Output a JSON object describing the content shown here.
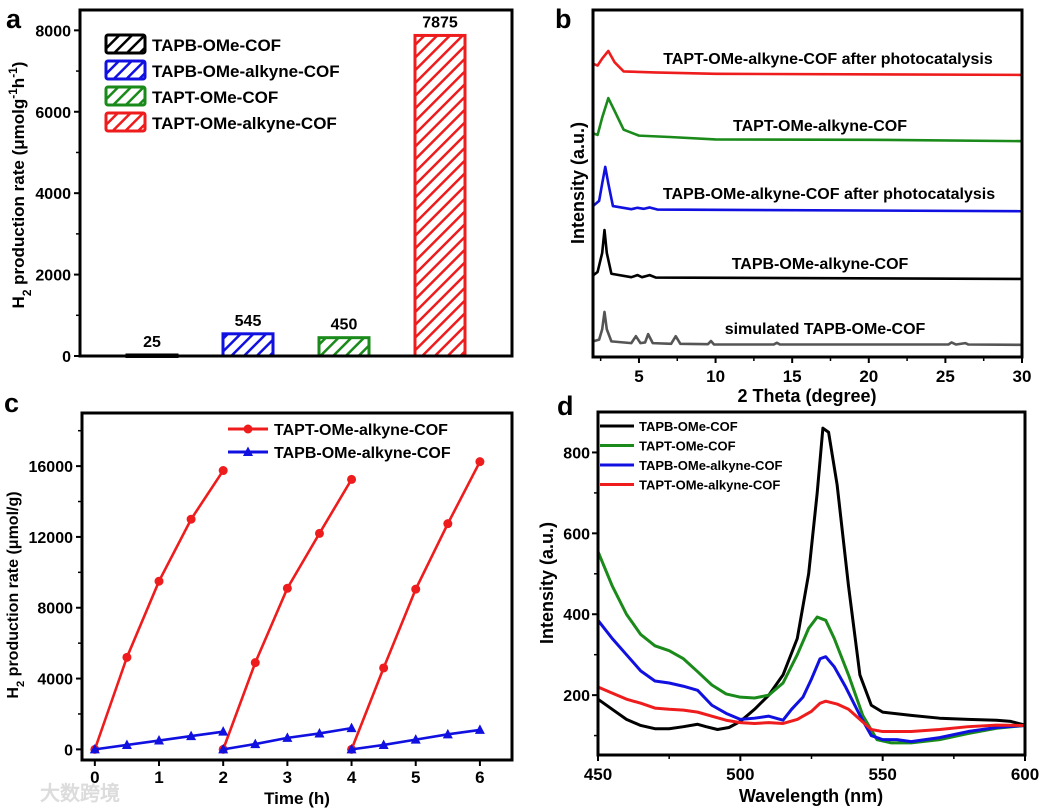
{
  "panels": {
    "a": {
      "letter": "a"
    },
    "b": {
      "letter": "b"
    },
    "c": {
      "letter": "c"
    },
    "d": {
      "letter": "d"
    }
  },
  "watermark": "大数跨境",
  "colors": {
    "black": "#000000",
    "blue": "#1010e0",
    "green": "#1a8a1a",
    "red": "#ee1c1c",
    "gray": "#555555"
  },
  "chart_data": [
    {
      "id": "a",
      "type": "bar",
      "title": "",
      "categories": [
        "TAPB-OMe-COF",
        "TAPB-OMe-alkyne-COF",
        "TAPT-OMe-COF",
        "TAPT-OMe-alkyne-COF"
      ],
      "values": [
        25,
        545,
        450,
        7875
      ],
      "data_labels": [
        "25",
        "545",
        "450",
        "7875"
      ],
      "bar_colors": [
        "#000000",
        "#1010e0",
        "#1a8a1a",
        "#ee1c1c"
      ],
      "pattern": "diagonal-hatch",
      "xlabel": "",
      "ylabel_parts": [
        [
          "H",
          "n"
        ],
        [
          "2",
          "sub"
        ],
        [
          " production rate (μmolg",
          "n"
        ],
        [
          "-1",
          "sup"
        ],
        [
          "h",
          "n"
        ],
        [
          "-1",
          "sup"
        ],
        [
          ")",
          "n"
        ]
      ],
      "ylim": [
        0,
        8500
      ],
      "yticks": [
        0,
        2000,
        4000,
        6000,
        8000
      ],
      "legend": {
        "entries": [
          "TAPB-OMe-COF",
          "TAPB-OMe-alkyne-COF",
          "TAPT-OMe-COF",
          "TAPT-OMe-alkyne-COF"
        ],
        "placement": "top-left"
      },
      "grid": false
    },
    {
      "id": "b",
      "type": "line",
      "title": "",
      "xlabel": "2 Theta (degree)",
      "ylabel": "Intensity (a.u.)",
      "xlim": [
        2,
        30
      ],
      "ylim": [
        0,
        100
      ],
      "xticks": [
        5,
        10,
        15,
        20,
        25,
        30
      ],
      "yticks_shown": false,
      "grid": false,
      "series": [
        {
          "name": "TAPT-OMe-alkyne-COF after photocatalysis",
          "color": "#ee1c1c",
          "points": [
            [
              2,
              84.5
            ],
            [
              2.3,
              84
            ],
            [
              2.6,
              86
            ],
            [
              3.0,
              88.2
            ],
            [
              3.4,
              85
            ],
            [
              4,
              82.3
            ],
            [
              6,
              82
            ],
            [
              10,
              81.6
            ],
            [
              30,
              81.3
            ]
          ]
        },
        {
          "name": "TAPT-OMe-alkyne-COF",
          "color": "#1a8a1a",
          "points": [
            [
              2,
              64.5
            ],
            [
              2.3,
              64
            ],
            [
              2.6,
              69
            ],
            [
              3.0,
              74.6
            ],
            [
              3.4,
              71
            ],
            [
              4,
              65.5
            ],
            [
              5,
              63.8
            ],
            [
              7,
              63.4
            ],
            [
              10,
              62.7
            ],
            [
              20,
              62.6
            ],
            [
              30,
              62.2
            ]
          ]
        },
        {
          "name": "TAPB-OMe-alkyne-COF after photocatalysis",
          "color": "#1010e0",
          "points": [
            [
              2,
              43.5
            ],
            [
              2.4,
              45
            ],
            [
              2.6,
              50
            ],
            [
              2.8,
              54.8
            ],
            [
              3.0,
              50
            ],
            [
              3.3,
              43.5
            ],
            [
              4.5,
              42.6
            ],
            [
              4.9,
              43
            ],
            [
              5.3,
              42.7
            ],
            [
              5.7,
              43.1
            ],
            [
              6.2,
              42.5
            ],
            [
              30,
              42
            ]
          ]
        },
        {
          "name": "TAPB-OMe-alkyne-COF",
          "color": "#000000",
          "points": [
            [
              2,
              23.5
            ],
            [
              2.3,
              24.5
            ],
            [
              2.6,
              30
            ],
            [
              2.75,
              36.6
            ],
            [
              2.9,
              30
            ],
            [
              3.2,
              24
            ],
            [
              4.5,
              23
            ],
            [
              4.9,
              23.6
            ],
            [
              5.2,
              23
            ],
            [
              5.7,
              23.6
            ],
            [
              6.1,
              22.9
            ],
            [
              30,
              22.5
            ]
          ]
        },
        {
          "name": "simulated TAPB-OMe-COF",
          "color": "#555555",
          "points": [
            [
              2,
              4.5
            ],
            [
              2.4,
              5
            ],
            [
              2.6,
              8
            ],
            [
              2.75,
              13
            ],
            [
              2.9,
              8
            ],
            [
              3.2,
              4.5
            ],
            [
              4.5,
              4
            ],
            [
              4.8,
              6
            ],
            [
              5.1,
              4
            ],
            [
              5.4,
              4.2
            ],
            [
              5.6,
              6.6
            ],
            [
              5.9,
              4
            ],
            [
              7.1,
              3.8
            ],
            [
              7.4,
              6
            ],
            [
              7.7,
              3.8
            ],
            [
              9.5,
              3.7
            ],
            [
              9.7,
              4.6
            ],
            [
              9.9,
              3.6
            ],
            [
              13.8,
              3.6
            ],
            [
              14,
              4.1
            ],
            [
              14.2,
              3.6
            ],
            [
              25.2,
              3.6
            ],
            [
              25.4,
              4.2
            ],
            [
              25.7,
              3.6
            ],
            [
              26.3,
              4
            ],
            [
              26.5,
              3.6
            ],
            [
              30,
              3.5
            ]
          ]
        }
      ]
    },
    {
      "id": "c",
      "type": "line",
      "title": "",
      "xlabel": "Time (h)",
      "ylabel_parts": [
        [
          "H",
          "n"
        ],
        [
          "2",
          "sub"
        ],
        [
          " production rate (μmol/g)",
          "n"
        ]
      ],
      "xlim": [
        -0.2,
        6.5
      ],
      "ylim": [
        -600,
        19000
      ],
      "xticks": [
        0,
        1,
        2,
        3,
        4,
        5,
        6
      ],
      "yticks": [
        0,
        4000,
        8000,
        12000,
        16000
      ],
      "legend": {
        "placement": "top-right"
      },
      "grid": false,
      "series": [
        {
          "name": "TAPT-OMe-alkyne-COF",
          "color": "#ee1c1c",
          "marker": "circle",
          "segments": [
            [
              [
                0,
                0
              ],
              [
                0.5,
                5200
              ],
              [
                1,
                9500
              ],
              [
                1.5,
                13000
              ],
              [
                2,
                15750
              ]
            ],
            [
              [
                2,
                0
              ],
              [
                2.5,
                4900
              ],
              [
                3,
                9100
              ],
              [
                3.5,
                12200
              ],
              [
                4,
                15250
              ]
            ],
            [
              [
                4,
                0
              ],
              [
                4.5,
                4600
              ],
              [
                5,
                9050
              ],
              [
                5.5,
                12750
              ],
              [
                6,
                16250
              ]
            ]
          ]
        },
        {
          "name": "TAPB-OMe-alkyne-COF",
          "color": "#1010e0",
          "marker": "triangle",
          "segments": [
            [
              [
                0,
                0
              ],
              [
                0.5,
                250
              ],
              [
                1,
                500
              ],
              [
                1.5,
                750
              ],
              [
                2,
                1000
              ]
            ],
            [
              [
                2,
                0
              ],
              [
                2.5,
                300
              ],
              [
                3,
                650
              ],
              [
                3.5,
                900
              ],
              [
                4,
                1200
              ]
            ],
            [
              [
                4,
                0
              ],
              [
                4.5,
                250
              ],
              [
                5,
                550
              ],
              [
                5.5,
                850
              ],
              [
                6,
                1100
              ]
            ]
          ]
        }
      ]
    },
    {
      "id": "d",
      "type": "line",
      "title": "",
      "xlabel": "Wavelength (nm)",
      "ylabel": "Intensity (a.u.)",
      "xlim": [
        450,
        600
      ],
      "ylim": [
        52,
        900
      ],
      "xticks": [
        450,
        500,
        550,
        600
      ],
      "yticks": [
        200,
        400,
        600,
        800
      ],
      "legend": {
        "placement": "top-left"
      },
      "grid": false,
      "series": [
        {
          "name": "TAPB-OMe-COF",
          "color": "#000000",
          "points": [
            [
              450,
              190
            ],
            [
              455,
              165
            ],
            [
              460,
              140
            ],
            [
              465,
              125
            ],
            [
              470,
              117
            ],
            [
              475,
              117
            ],
            [
              480,
              122
            ],
            [
              485,
              128
            ],
            [
              488,
              122
            ],
            [
              492,
              115
            ],
            [
              496,
              120
            ],
            [
              500,
              135
            ],
            [
              505,
              165
            ],
            [
              510,
              200
            ],
            [
              515,
              250
            ],
            [
              520,
              340
            ],
            [
              524,
              500
            ],
            [
              527,
              700
            ],
            [
              529,
              860
            ],
            [
              531,
              850
            ],
            [
              534,
              720
            ],
            [
              538,
              470
            ],
            [
              542,
              250
            ],
            [
              546,
              175
            ],
            [
              550,
              158
            ],
            [
              560,
              150
            ],
            [
              570,
              143
            ],
            [
              580,
              140
            ],
            [
              590,
              138
            ],
            [
              595,
              135
            ],
            [
              600,
              126
            ]
          ]
        },
        {
          "name": "TAPT-OMe-COF",
          "color": "#1a8a1a",
          "points": [
            [
              450,
              555
            ],
            [
              455,
              470
            ],
            [
              460,
              400
            ],
            [
              465,
              350
            ],
            [
              470,
              322
            ],
            [
              475,
              310
            ],
            [
              480,
              290
            ],
            [
              485,
              258
            ],
            [
              490,
              225
            ],
            [
              495,
              203
            ],
            [
              500,
              195
            ],
            [
              505,
              193
            ],
            [
              510,
              200
            ],
            [
              515,
              230
            ],
            [
              520,
              300
            ],
            [
              524,
              365
            ],
            [
              527,
              393
            ],
            [
              530,
              385
            ],
            [
              533,
              340
            ],
            [
              538,
              250
            ],
            [
              543,
              150
            ],
            [
              548,
              90
            ],
            [
              553,
              82
            ],
            [
              560,
              82
            ],
            [
              570,
              90
            ],
            [
              580,
              105
            ],
            [
              590,
              118
            ],
            [
              600,
              125
            ]
          ]
        },
        {
          "name": "TAPB-OMe-alkyne-COF",
          "color": "#1010e0",
          "points": [
            [
              450,
              385
            ],
            [
              455,
              340
            ],
            [
              460,
              300
            ],
            [
              465,
              260
            ],
            [
              470,
              235
            ],
            [
              475,
              230
            ],
            [
              480,
              222
            ],
            [
              485,
              212
            ],
            [
              490,
              175
            ],
            [
              495,
              155
            ],
            [
              500,
              140
            ],
            [
              505,
              143
            ],
            [
              510,
              148
            ],
            [
              515,
              138
            ],
            [
              518,
              165
            ],
            [
              522,
              195
            ],
            [
              525,
              240
            ],
            [
              528,
              290
            ],
            [
              530,
              295
            ],
            [
              533,
              270
            ],
            [
              537,
              220
            ],
            [
              542,
              150
            ],
            [
              546,
              100
            ],
            [
              550,
              90
            ],
            [
              555,
              90
            ],
            [
              560,
              85
            ],
            [
              570,
              95
            ],
            [
              580,
              110
            ],
            [
              590,
              120
            ],
            [
              600,
              125
            ]
          ]
        },
        {
          "name": "TAPT-OMe-alkyne-COF",
          "color": "#ee1c1c",
          "points": [
            [
              450,
              220
            ],
            [
              455,
              205
            ],
            [
              460,
              190
            ],
            [
              465,
              180
            ],
            [
              470,
              168
            ],
            [
              475,
              165
            ],
            [
              480,
              163
            ],
            [
              485,
              158
            ],
            [
              490,
              148
            ],
            [
              495,
              138
            ],
            [
              500,
              132
            ],
            [
              505,
              130
            ],
            [
              510,
              132
            ],
            [
              515,
              130
            ],
            [
              520,
              140
            ],
            [
              525,
              160
            ],
            [
              528,
              180
            ],
            [
              530,
              185
            ],
            [
              534,
              178
            ],
            [
              538,
              165
            ],
            [
              542,
              140
            ],
            [
              546,
              115
            ],
            [
              550,
              110
            ],
            [
              560,
              110
            ],
            [
              570,
              115
            ],
            [
              580,
              122
            ],
            [
              590,
              126
            ],
            [
              600,
              125
            ]
          ]
        }
      ]
    }
  ]
}
